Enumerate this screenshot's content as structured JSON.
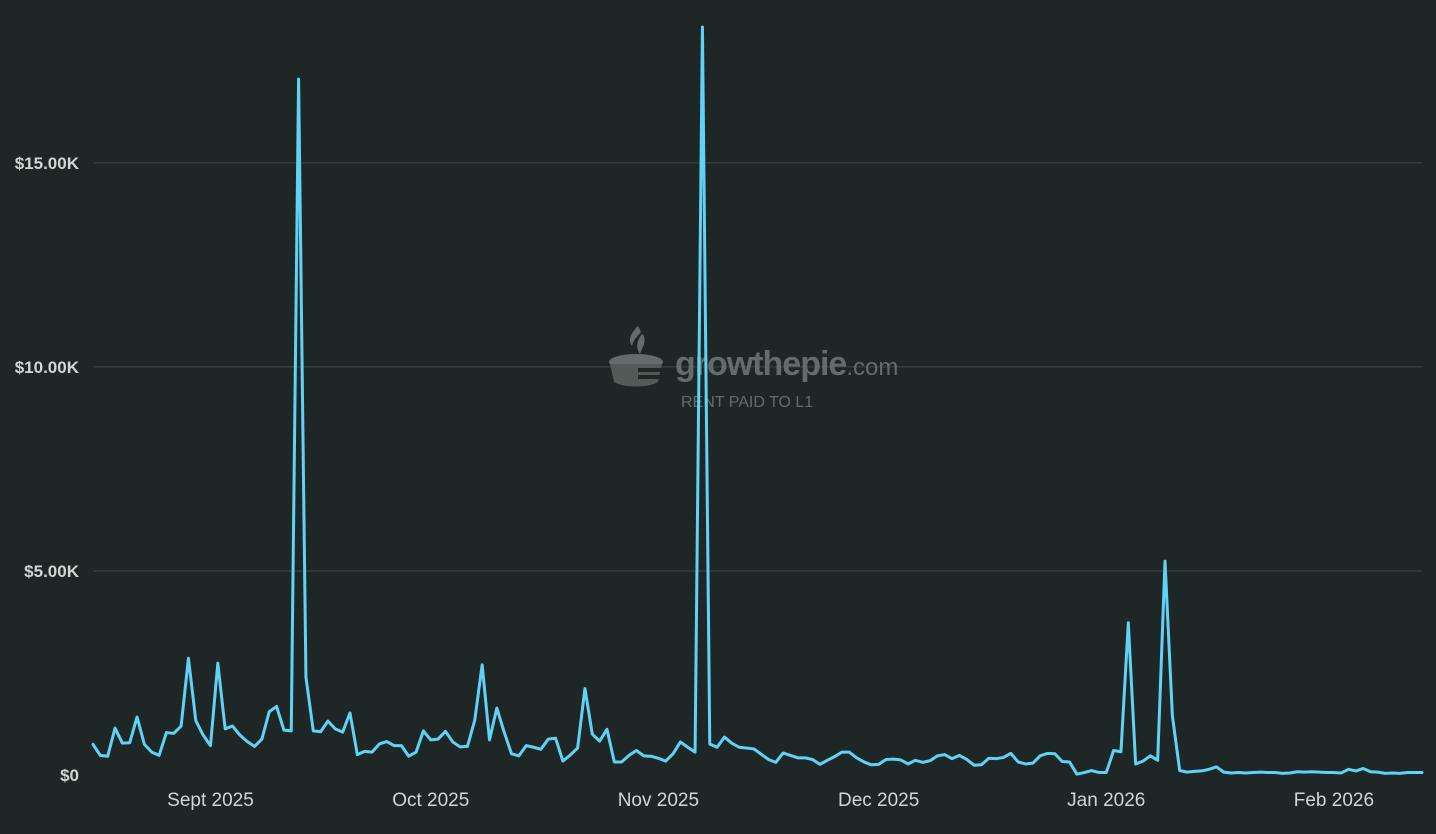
{
  "watermark": {
    "brand": "growthepie",
    "domain_suffix": ".com",
    "metric_label": "RENT PAID TO L1",
    "icon": "pie-logo-icon"
  },
  "colors": {
    "background": "#1f2726",
    "series": "#5fd2f5",
    "grid": "#3c4845",
    "text": "#cdd8d3"
  },
  "chart_data": {
    "type": "line",
    "title": "",
    "xlabel": "",
    "ylabel": "",
    "x_start": "2025-08-16",
    "x_end": "2026-02-13",
    "xlim": [
      "2025-08-16",
      "2026-02-13"
    ],
    "ylim": [
      0,
      18500
    ],
    "grid": true,
    "legend": "none",
    "y_ticks": [
      {
        "value": 0,
        "label": "$0"
      },
      {
        "value": 5000,
        "label": "$5.00K"
      },
      {
        "value": 10000,
        "label": "$10.00K"
      },
      {
        "value": 15000,
        "label": "$15.00K"
      }
    ],
    "x_ticks": [
      {
        "date": "2025-09-01",
        "label": "Sept 2025"
      },
      {
        "date": "2025-10-01",
        "label": "Oct 2025"
      },
      {
        "date": "2025-11-01",
        "label": "Nov 2025"
      },
      {
        "date": "2025-12-01",
        "label": "Dec 2025"
      },
      {
        "date": "2026-01-01",
        "label": "Jan 2026"
      },
      {
        "date": "2026-02-01",
        "label": "Feb 2026"
      }
    ],
    "series": [
      {
        "values": [
          750,
          480,
          460,
          1150,
          780,
          790,
          1420,
          750,
          560,
          480,
          1040,
          1020,
          1200,
          2860,
          1330,
          980,
          720,
          2740,
          1130,
          1200,
          980,
          820,
          700,
          880,
          1550,
          1680,
          1100,
          1080,
          17050,
          2400,
          1080,
          1060,
          1320,
          1130,
          1050,
          1520,
          500,
          580,
          560,
          760,
          820,
          720,
          720,
          460,
          560,
          1080,
          860,
          880,
          1070,
          810,
          690,
          700,
          1350,
          2700,
          860,
          1640,
          1050,
          520,
          470,
          720,
          680,
          630,
          880,
          900,
          340,
          490,
          660,
          2120,
          1000,
          830,
          1120,
          320,
          320,
          480,
          600,
          470,
          460,
          410,
          340,
          520,
          810,
          680,
          560,
          18330,
          760,
          680,
          930,
          780,
          680,
          660,
          640,
          510,
          380,
          310,
          540,
          480,
          420,
          420,
          380,
          260,
          360,
          450,
          560,
          560,
          420,
          320,
          250,
          260,
          380,
          390,
          370,
          270,
          360,
          310,
          350,
          470,
          500,
          400,
          480,
          380,
          240,
          250,
          410,
          400,
          430,
          530,
          320,
          270,
          290,
          470,
          530,
          520,
          330,
          320,
          20,
          60,
          110,
          60,
          60,
          600,
          570,
          3730,
          270,
          340,
          470,
          360,
          5240,
          1460,
          110,
          70,
          90,
          100,
          140,
          200,
          70,
          50,
          60,
          50,
          60,
          70,
          60,
          60,
          40,
          50,
          80,
          70,
          80,
          70,
          60,
          60,
          50,
          140,
          100,
          160,
          80,
          70,
          40,
          50,
          40,
          60,
          60,
          60
        ]
      }
    ]
  }
}
